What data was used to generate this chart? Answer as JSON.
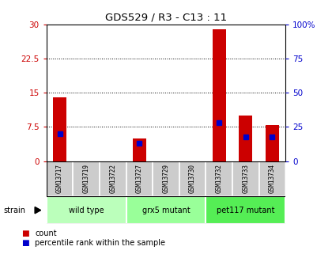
{
  "title": "GDS529 / R3 - C13 : 11",
  "samples": [
    "GSM13717",
    "GSM13719",
    "GSM13722",
    "GSM13727",
    "GSM13729",
    "GSM13730",
    "GSM13732",
    "GSM13733",
    "GSM13734"
  ],
  "counts": [
    14,
    0,
    0,
    5,
    0,
    0,
    29,
    10,
    8
  ],
  "percentiles": [
    20,
    0,
    0,
    13,
    0,
    0,
    28,
    18,
    18
  ],
  "groups": [
    {
      "label": "wild type",
      "start": 0,
      "end": 3,
      "color": "#bbffbb"
    },
    {
      "label": "grx5 mutant",
      "start": 3,
      "end": 6,
      "color": "#99ff99"
    },
    {
      "label": "pet117 mutant",
      "start": 6,
      "end": 9,
      "color": "#55ee55"
    }
  ],
  "left_ylim": [
    0,
    30
  ],
  "right_ylim": [
    0,
    100
  ],
  "left_yticks": [
    0,
    7.5,
    15,
    22.5,
    30
  ],
  "left_yticklabels": [
    "0",
    "7.5",
    "15",
    "22.5",
    "30"
  ],
  "right_yticks": [
    0,
    25,
    50,
    75,
    100
  ],
  "right_yticklabels": [
    "0",
    "25",
    "50",
    "75",
    "100%"
  ],
  "bar_color": "#cc0000",
  "percentile_color": "#0000cc",
  "sample_bg": "#cccccc",
  "bar_width": 0.5,
  "dot_size": 5
}
